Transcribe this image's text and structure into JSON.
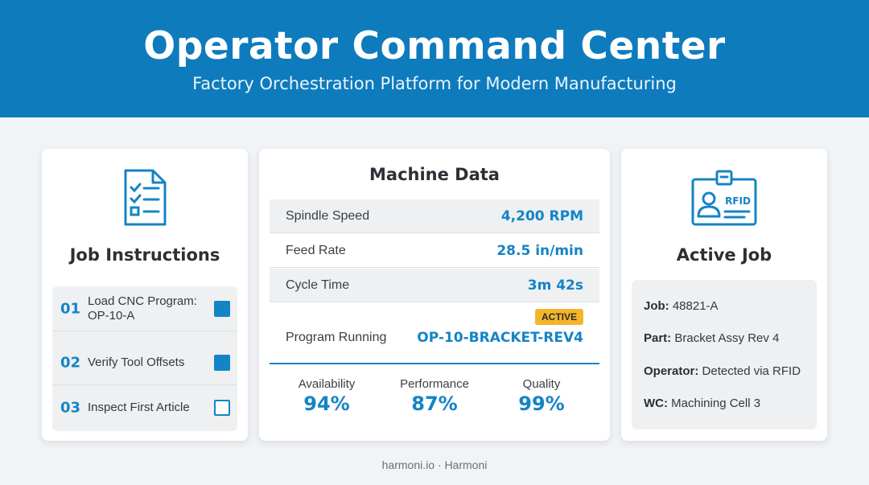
{
  "header": {
    "title": "Operator Command Center",
    "subtitle": "Factory Orchestration Platform for Modern Manufacturing"
  },
  "job_instructions": {
    "title": "Job Instructions",
    "icon": "checklist-document-icon",
    "steps": [
      {
        "num": "01",
        "text": "Load CNC Program: OP-10-A",
        "checked": true
      },
      {
        "num": "02",
        "text": "Verify Tool Offsets",
        "checked": true
      },
      {
        "num": "03",
        "text": "Inspect First Article",
        "checked": false
      }
    ]
  },
  "machine_data": {
    "title": "Machine Data",
    "rows": [
      {
        "label": "Spindle Speed",
        "value": "4,200 RPM"
      },
      {
        "label": "Feed Rate",
        "value": "28.5 in/min"
      },
      {
        "label": "Cycle Time",
        "value": "3m 42s"
      },
      {
        "label": "Program Running",
        "value": "OP-10-BRACKET-REV4"
      }
    ],
    "status_badge": "ACTIVE",
    "kpis": [
      {
        "label": "Availability",
        "value": "94%"
      },
      {
        "label": "Performance",
        "value": "87%"
      },
      {
        "label": "Quality",
        "value": "99%"
      }
    ]
  },
  "active_job": {
    "title": "Active Job",
    "icon": "rfid-badge-icon",
    "icon_text": "RFID",
    "fields": [
      {
        "key": "Job:",
        "value": "48821-A"
      },
      {
        "key": "Part:",
        "value": "Bracket Assy Rev 4"
      },
      {
        "key": "Operator:",
        "value": "Detected via RFID"
      },
      {
        "key": "WC:",
        "value": "Machining Cell 3"
      }
    ]
  },
  "footer": {
    "text": "harmoni.io · Harmoni"
  },
  "colors": {
    "brand_blue": "#0e7bbd",
    "accent_blue": "#1484c6",
    "badge_yellow": "#f4b52a"
  }
}
